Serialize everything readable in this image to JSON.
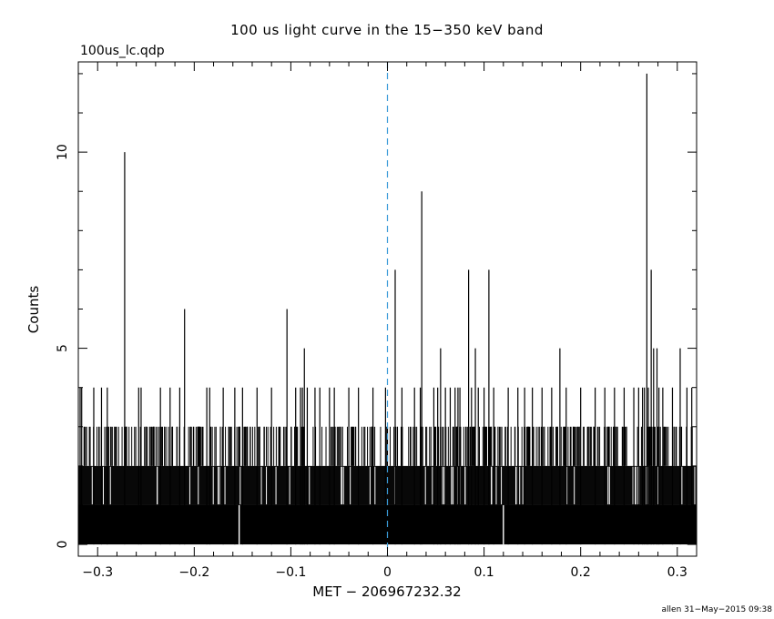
{
  "chart_data": {
    "type": "bar",
    "title": "100 us light curve in the 15−350 keV band",
    "file_label": "100us_lc.qdp",
    "xlabel": "MET − 206967232.32",
    "ylabel": "Counts",
    "footer": "allen 31−May−2015 09:38",
    "xlim": [
      -0.32,
      0.32
    ],
    "ylim": [
      -0.3,
      12.3
    ],
    "x_ticks": [
      -0.3,
      -0.2,
      -0.1,
      0,
      0.1,
      0.2,
      0.3
    ],
    "x_tick_labels": [
      "−0.3",
      "−0.2",
      "−0.1",
      "0",
      "0.1",
      "0.2",
      "0.3"
    ],
    "y_ticks": [
      0,
      5,
      10
    ],
    "y_tick_labels": [
      "0",
      "5",
      "10"
    ],
    "bin_width": 0.0001,
    "reference_line_x": 0,
    "colors": {
      "data": "#000000",
      "reference_line": "#3a9bd8",
      "background": "#ffffff"
    },
    "spikes": [
      {
        "x": -0.3181,
        "y": 4
      },
      {
        "x": -0.3165,
        "y": 4
      },
      {
        "x": -0.304,
        "y": 4
      },
      {
        "x": -0.296,
        "y": 4
      },
      {
        "x": -0.29,
        "y": 4
      },
      {
        "x": -0.272,
        "y": 10
      },
      {
        "x": -0.2575,
        "y": 4
      },
      {
        "x": -0.255,
        "y": 4
      },
      {
        "x": -0.235,
        "y": 4
      },
      {
        "x": -0.225,
        "y": 4
      },
      {
        "x": -0.215,
        "y": 4
      },
      {
        "x": -0.21,
        "y": 6
      },
      {
        "x": -0.187,
        "y": 4
      },
      {
        "x": -0.184,
        "y": 4
      },
      {
        "x": -0.17,
        "y": 4
      },
      {
        "x": -0.158,
        "y": 4
      },
      {
        "x": -0.15,
        "y": 4
      },
      {
        "x": -0.135,
        "y": 4
      },
      {
        "x": -0.12,
        "y": 4
      },
      {
        "x": -0.104,
        "y": 6
      },
      {
        "x": -0.095,
        "y": 4
      },
      {
        "x": -0.09,
        "y": 4
      },
      {
        "x": -0.088,
        "y": 4
      },
      {
        "x": -0.086,
        "y": 5
      },
      {
        "x": -0.083,
        "y": 4
      },
      {
        "x": -0.075,
        "y": 4
      },
      {
        "x": -0.07,
        "y": 4
      },
      {
        "x": -0.06,
        "y": 4
      },
      {
        "x": -0.055,
        "y": 4
      },
      {
        "x": -0.04,
        "y": 4
      },
      {
        "x": -0.03,
        "y": 4
      },
      {
        "x": -0.015,
        "y": 4
      },
      {
        "x": -0.002,
        "y": 4
      },
      {
        "x": 0.008,
        "y": 7
      },
      {
        "x": 0.015,
        "y": 4
      },
      {
        "x": 0.028,
        "y": 4
      },
      {
        "x": 0.034,
        "y": 4
      },
      {
        "x": 0.0355,
        "y": 9
      },
      {
        "x": 0.048,
        "y": 4
      },
      {
        "x": 0.052,
        "y": 4
      },
      {
        "x": 0.055,
        "y": 5
      },
      {
        "x": 0.06,
        "y": 4
      },
      {
        "x": 0.065,
        "y": 4
      },
      {
        "x": 0.07,
        "y": 4
      },
      {
        "x": 0.073,
        "y": 4
      },
      {
        "x": 0.075,
        "y": 4
      },
      {
        "x": 0.084,
        "y": 7
      },
      {
        "x": 0.087,
        "y": 4
      },
      {
        "x": 0.091,
        "y": 5
      },
      {
        "x": 0.094,
        "y": 4
      },
      {
        "x": 0.1,
        "y": 4
      },
      {
        "x": 0.105,
        "y": 7
      },
      {
        "x": 0.11,
        "y": 4
      },
      {
        "x": 0.125,
        "y": 4
      },
      {
        "x": 0.135,
        "y": 4
      },
      {
        "x": 0.142,
        "y": 4
      },
      {
        "x": 0.15,
        "y": 4
      },
      {
        "x": 0.16,
        "y": 4
      },
      {
        "x": 0.17,
        "y": 4
      },
      {
        "x": 0.1785,
        "y": 5
      },
      {
        "x": 0.185,
        "y": 4
      },
      {
        "x": 0.2,
        "y": 4
      },
      {
        "x": 0.215,
        "y": 4
      },
      {
        "x": 0.225,
        "y": 4
      },
      {
        "x": 0.235,
        "y": 4
      },
      {
        "x": 0.245,
        "y": 4
      },
      {
        "x": 0.255,
        "y": 4
      },
      {
        "x": 0.26,
        "y": 4
      },
      {
        "x": 0.264,
        "y": 4
      },
      {
        "x": 0.266,
        "y": 4
      },
      {
        "x": 0.2685,
        "y": 12
      },
      {
        "x": 0.27,
        "y": 4
      },
      {
        "x": 0.273,
        "y": 7
      },
      {
        "x": 0.2755,
        "y": 5
      },
      {
        "x": 0.279,
        "y": 5
      },
      {
        "x": 0.281,
        "y": 4
      },
      {
        "x": 0.285,
        "y": 4
      },
      {
        "x": 0.295,
        "y": 4
      },
      {
        "x": 0.303,
        "y": 5
      },
      {
        "x": 0.31,
        "y": 4
      },
      {
        "x": 0.315,
        "y": 4
      }
    ],
    "zero_bins": [
      {
        "x": -0.1535,
        "y": 0
      },
      {
        "x": 0.12,
        "y": 0
      }
    ]
  }
}
